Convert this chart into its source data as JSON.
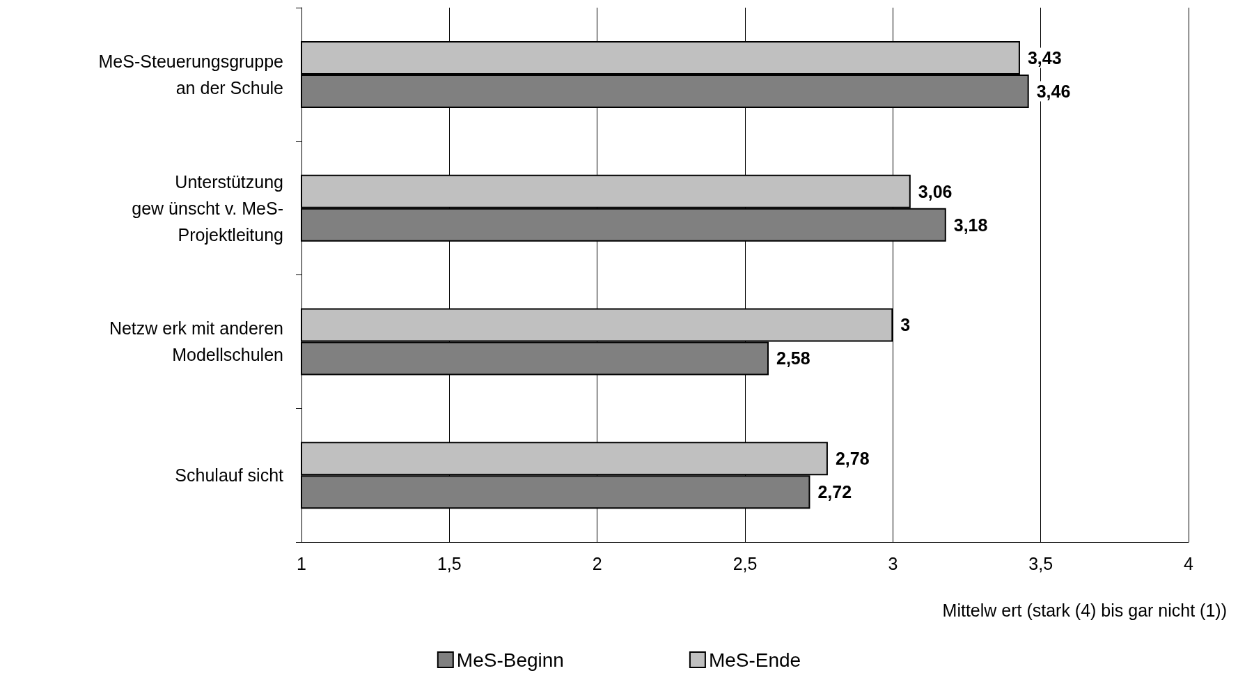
{
  "chart_data": {
    "type": "bar",
    "orientation": "horizontal",
    "xlabel": "Mittelw ert (stark (4) bis gar nicht (1))",
    "categories": [
      "MeS-Steuerungsgruppe\nan der Schule",
      "Unterstützung\ngew ünscht v. MeS-\nProjektleitung",
      "Netzw erk mit anderen\nModellschulen",
      "Schulauf sicht"
    ],
    "series": [
      {
        "name": "MeS-Beginn",
        "color": "#808080",
        "values": [
          3.46,
          3.18,
          2.58,
          2.72
        ],
        "value_labels": [
          "3,46",
          "3,18",
          "2,58",
          "2,72"
        ]
      },
      {
        "name": "MeS-Ende",
        "color": "#c0c0c0",
        "values": [
          3.43,
          3.06,
          3,
          2.78
        ],
        "value_labels": [
          "3,43",
          "3,06",
          "3",
          "2,78"
        ]
      }
    ],
    "xlim": [
      1,
      4
    ],
    "xticks": [
      1,
      {
        "value": 1.5,
        "label": "1,5"
      },
      2,
      {
        "value": 2.5,
        "label": "2,5"
      },
      3,
      {
        "value": 3.5,
        "label": "3,5"
      },
      4
    ],
    "grid": "x",
    "legend": "bottom"
  }
}
